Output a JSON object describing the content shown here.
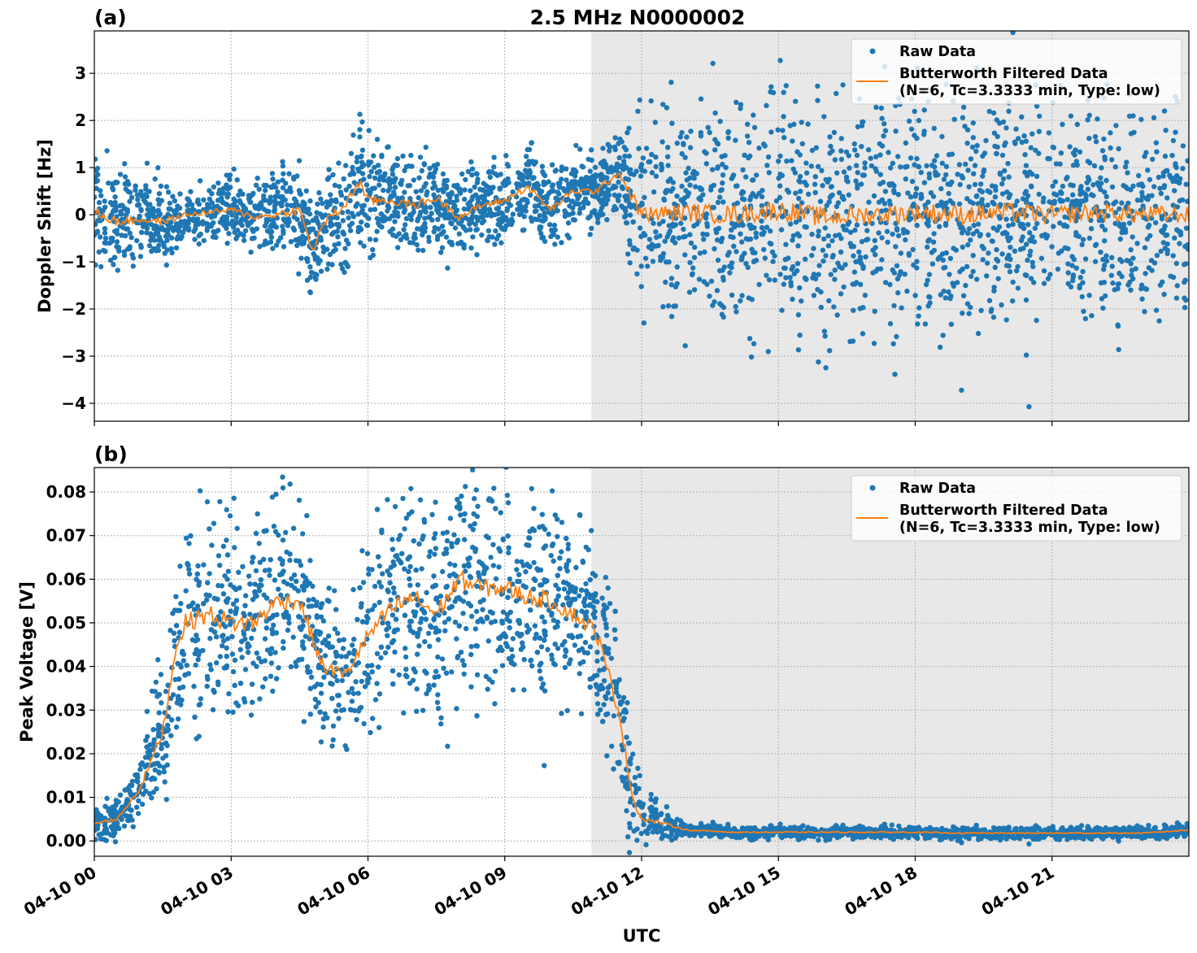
{
  "chart_data": {
    "type": "scatter",
    "title": "2.5 MHz N0000002",
    "xlabel": "UTC",
    "x_unit": "hours since 04-10 00",
    "xlim": [
      0,
      24
    ],
    "xticks": [
      0,
      3,
      6,
      9,
      12,
      15,
      18,
      21
    ],
    "xtick_labels": [
      "04-10 00",
      "04-10 03",
      "04-10 06",
      "04-10 09",
      "04-10 12",
      "04-10 15",
      "04-10 18",
      "04-10 21"
    ],
    "shaded_region": [
      10.9,
      24
    ],
    "colors": {
      "raw": "#1f77b4",
      "filtered": "#ff7f0e",
      "shade": "#e8e8e8"
    },
    "legend": {
      "placement": "top-right",
      "entries": [
        "Raw Data",
        "Butterworth Filtered Data",
        "(N=6, Tc=3.3333 min, Type: low)"
      ]
    },
    "panels": [
      {
        "label": "(a)",
        "ylabel": "Doppler Shift [Hz]",
        "ylim": [
          -4.38,
          3.9
        ],
        "yticks": [
          3,
          2,
          1,
          0,
          -1,
          -2,
          -3,
          -4
        ],
        "ytick_labels": [
          "3",
          "2",
          "1",
          "0",
          "−1",
          "−2",
          "−3",
          "−4"
        ],
        "t": [
          0,
          0.5,
          1,
          1.5,
          2,
          2.5,
          3,
          3.5,
          4,
          4.5,
          4.8,
          5,
          5.5,
          5.8,
          6,
          6.5,
          7,
          7.5,
          8,
          8.5,
          9,
          9.5,
          10,
          10.5,
          11,
          11.5,
          12,
          13,
          14,
          15,
          16,
          17,
          18,
          19,
          20,
          21,
          22,
          23,
          24
        ],
        "filtered": [
          0.05,
          -0.15,
          -0.1,
          -0.15,
          0.0,
          0.05,
          0.1,
          -0.05,
          0.0,
          0.1,
          -0.8,
          -0.2,
          0.2,
          0.7,
          0.3,
          0.3,
          0.2,
          0.35,
          -0.05,
          0.2,
          0.3,
          0.6,
          0.1,
          0.5,
          0.5,
          0.9,
          0.0,
          0.05,
          0.0,
          0.1,
          -0.05,
          0.0,
          0.05,
          0.0,
          0.05,
          0.0,
          0.05,
          0.0,
          0.0
        ],
        "raw_spread": [
          0.6,
          0.5,
          0.5,
          0.4,
          0.3,
          0.3,
          0.4,
          0.4,
          0.4,
          0.5,
          0.6,
          0.5,
          0.6,
          0.7,
          0.6,
          0.5,
          0.5,
          0.5,
          0.4,
          0.4,
          0.4,
          0.5,
          0.4,
          0.4,
          0.4,
          0.4,
          1.0,
          1.1,
          1.2,
          1.2,
          1.2,
          1.2,
          1.2,
          1.2,
          1.2,
          1.1,
          1.1,
          1.1,
          1.0
        ]
      },
      {
        "label": "(b)",
        "ylabel": "Peak Voltage [V]",
        "ylim": [
          -0.0035,
          0.0856
        ],
        "yticks": [
          0.08,
          0.07,
          0.06,
          0.05,
          0.04,
          0.03,
          0.02,
          0.01,
          0.0
        ],
        "ytick_labels": [
          "0.08",
          "0.07",
          "0.06",
          "0.05",
          "0.04",
          "0.03",
          "0.02",
          "0.01",
          "0.00"
        ],
        "t": [
          0,
          0.5,
          1,
          1.5,
          1.8,
          2,
          2.5,
          3,
          3.5,
          4,
          4.5,
          5,
          5.5,
          6,
          6.5,
          7,
          7.5,
          8,
          8.5,
          9,
          9.5,
          10,
          10.5,
          11,
          11.5,
          11.8,
          12,
          12.5,
          13,
          14,
          15,
          16,
          17,
          18,
          19,
          20,
          21,
          22,
          23,
          24
        ],
        "filtered": [
          0.004,
          0.005,
          0.012,
          0.025,
          0.045,
          0.05,
          0.052,
          0.05,
          0.05,
          0.055,
          0.055,
          0.04,
          0.038,
          0.047,
          0.053,
          0.056,
          0.052,
          0.06,
          0.058,
          0.058,
          0.056,
          0.055,
          0.052,
          0.048,
          0.03,
          0.01,
          0.005,
          0.004,
          0.0025,
          0.002,
          0.002,
          0.002,
          0.002,
          0.002,
          0.0018,
          0.0018,
          0.0018,
          0.0018,
          0.0018,
          0.0025
        ],
        "raw_spread": [
          0.002,
          0.002,
          0.004,
          0.008,
          0.01,
          0.012,
          0.013,
          0.013,
          0.012,
          0.011,
          0.011,
          0.01,
          0.008,
          0.011,
          0.012,
          0.012,
          0.012,
          0.012,
          0.012,
          0.012,
          0.012,
          0.011,
          0.011,
          0.01,
          0.01,
          0.006,
          0.003,
          0.002,
          0.0008,
          0.0007,
          0.0007,
          0.0007,
          0.0007,
          0.0007,
          0.0007,
          0.0007,
          0.0007,
          0.0007,
          0.0007,
          0.0008
        ]
      }
    ]
  }
}
